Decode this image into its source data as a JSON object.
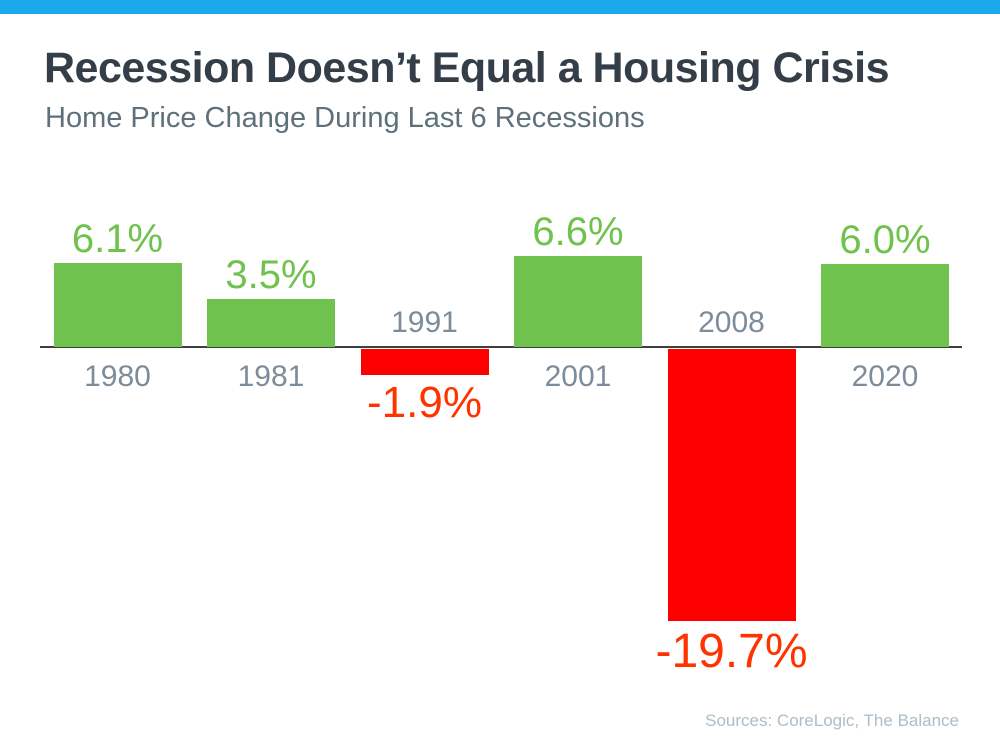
{
  "page": {
    "accent_bar_color": "#1BA9EC",
    "background_color": "#FFFFFF"
  },
  "header": {
    "title": "Recession Doesn’t Equal a Housing Crisis",
    "subtitle": "Home Price Change During Last 6 Recessions"
  },
  "footer": {
    "source": "Sources: CoreLogic, The Balance"
  },
  "chart_data": {
    "type": "bar",
    "title": "Recession Doesn’t Equal a Housing Crisis",
    "subtitle": "Home Price Change During Last 6 Recessions",
    "categories": [
      "1980",
      "1981",
      "1991",
      "2001",
      "2008",
      "2020"
    ],
    "values": [
      6.1,
      3.5,
      -1.9,
      6.6,
      -19.7,
      6.0
    ],
    "value_labels": [
      "6.1%",
      "3.5%",
      "-1.9%",
      "6.6%",
      "-19.7%",
      "6.0%"
    ],
    "xlabel": "",
    "ylabel": "",
    "ylim": [
      -20,
      8
    ],
    "grid": false,
    "legend": "none",
    "colors": {
      "positive_bar": "#6FC24D",
      "positive_label": "#6FC24D",
      "negative_bar": "#FF0000",
      "negative_label": "#FF3300",
      "year_label": "#7D8C9B",
      "axis": "#3F3F3F"
    }
  }
}
